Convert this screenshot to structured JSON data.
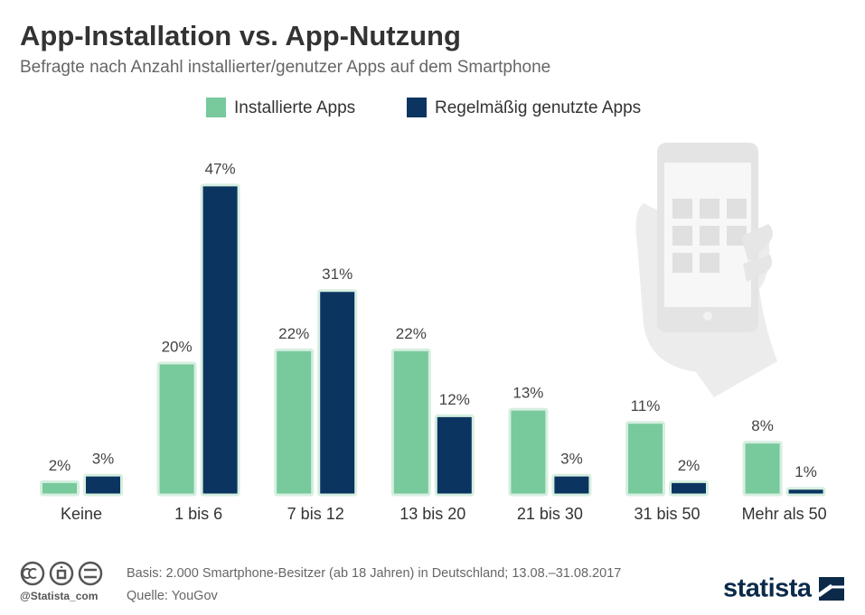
{
  "chart_data": {
    "type": "bar",
    "title": "App-Installation vs. App-Nutzung",
    "subtitle": "Befragte nach Anzahl installierter/genutzer Apps auf dem Smartphone",
    "categories": [
      "Keine",
      "1 bis 6",
      "7 bis 12",
      "13 bis 20",
      "21 bis 30",
      "31 bis 50",
      "Mehr als 50"
    ],
    "series": [
      {
        "name": "Installierte Apps",
        "color": "#78c99c",
        "values": [
          2,
          20,
          22,
          22,
          13,
          11,
          8
        ],
        "value_labels": [
          "2%",
          "20%",
          "22%",
          "22%",
          "13%",
          "11%",
          "8%"
        ]
      },
      {
        "name": "Regelmäßig genutzte Apps",
        "color": "#0b3560",
        "values": [
          3,
          47,
          31,
          12,
          3,
          2,
          1
        ],
        "value_labels": [
          "3%",
          "47%",
          "31%",
          "12%",
          "3%",
          "2%",
          "1%"
        ]
      }
    ],
    "notes": [
      "Basis: 2.000 Smartphone-Besitzer (ab 18 Jahren) in Deutschland; 13.08.–31.08.2017",
      "Quelle: YouGov"
    ],
    "credit": "@Statista_com",
    "brand": "statista"
  }
}
